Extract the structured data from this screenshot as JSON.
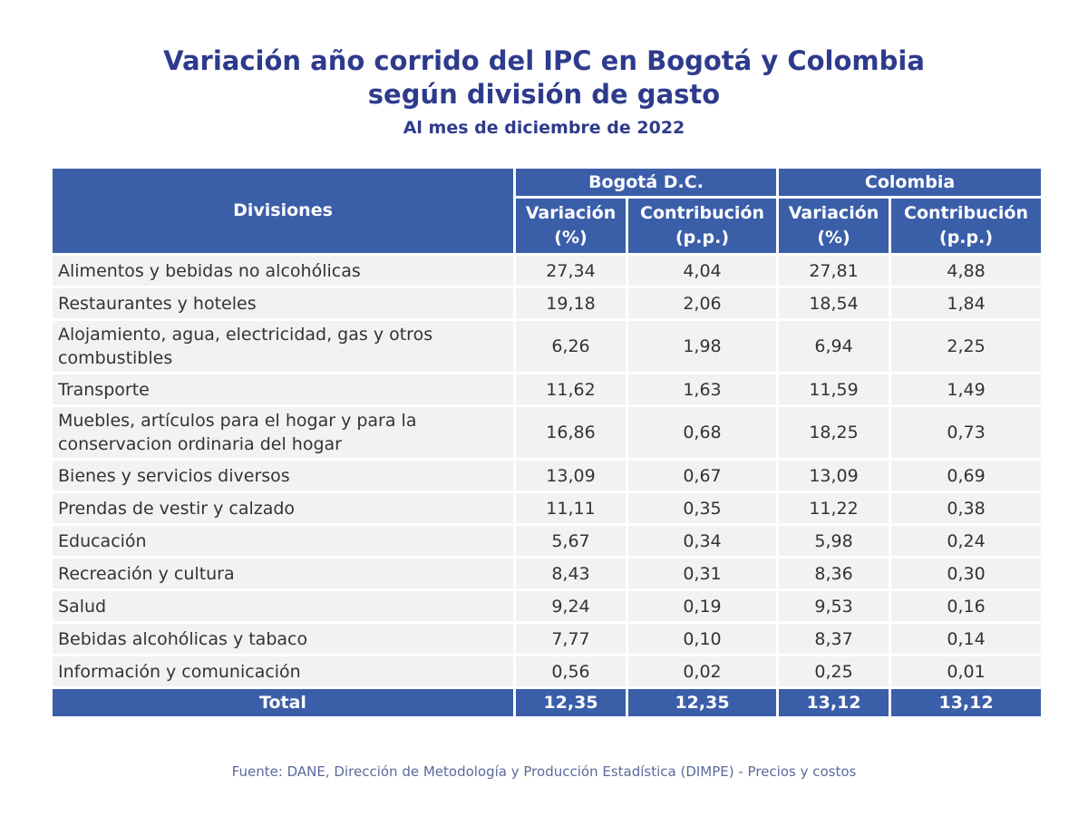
{
  "header": {
    "title_line1": "Variación año corrido del IPC en Bogotá y Colombia",
    "title_line2": "según división de gasto",
    "subtitle": "Al mes de diciembre de 2022"
  },
  "table": {
    "divisions_header": "Divisiones",
    "groups": [
      "Bogotá D.C.",
      "Colombia"
    ],
    "subheaders": [
      "Variación\n(%)",
      "Contribución\n(p.p.)",
      "Variación\n(%)",
      "Contribución\n(p.p.)"
    ],
    "rows": [
      [
        "Alimentos y bebidas no alcohólicas",
        "27,34",
        "4,04",
        "27,81",
        "4,88"
      ],
      [
        "Restaurantes y hoteles",
        "19,18",
        "2,06",
        "18,54",
        "1,84"
      ],
      [
        "Alojamiento, agua, electricidad, gas y otros combustibles",
        "6,26",
        "1,98",
        "6,94",
        "2,25"
      ],
      [
        "Transporte",
        "11,62",
        "1,63",
        "11,59",
        "1,49"
      ],
      [
        "Muebles, artículos para el hogar y para la conservacion ordinaria del hogar",
        "16,86",
        "0,68",
        "18,25",
        "0,73"
      ],
      [
        "Bienes y servicios diversos",
        "13,09",
        "0,67",
        "13,09",
        "0,69"
      ],
      [
        "Prendas de vestir y calzado",
        "11,11",
        "0,35",
        "11,22",
        "0,38"
      ],
      [
        "Educación",
        "5,67",
        "0,34",
        "5,98",
        "0,24"
      ],
      [
        "Recreación y cultura",
        "8,43",
        "0,31",
        "8,36",
        "0,30"
      ],
      [
        "Salud",
        "9,24",
        "0,19",
        "9,53",
        "0,16"
      ],
      [
        "Bebidas alcohólicas y tabaco",
        "7,77",
        "0,10",
        "8,37",
        "0,14"
      ],
      [
        "Información y comunicación",
        "0,56",
        "0,02",
        "0,25",
        "0,01"
      ]
    ],
    "total": [
      "Total",
      "12,35",
      "12,35",
      "13,12",
      "13,12"
    ]
  },
  "source": "Fuente: DANE, Dirección de Metodología y Producción Estadística (DIMPE) - Precios y costos"
}
